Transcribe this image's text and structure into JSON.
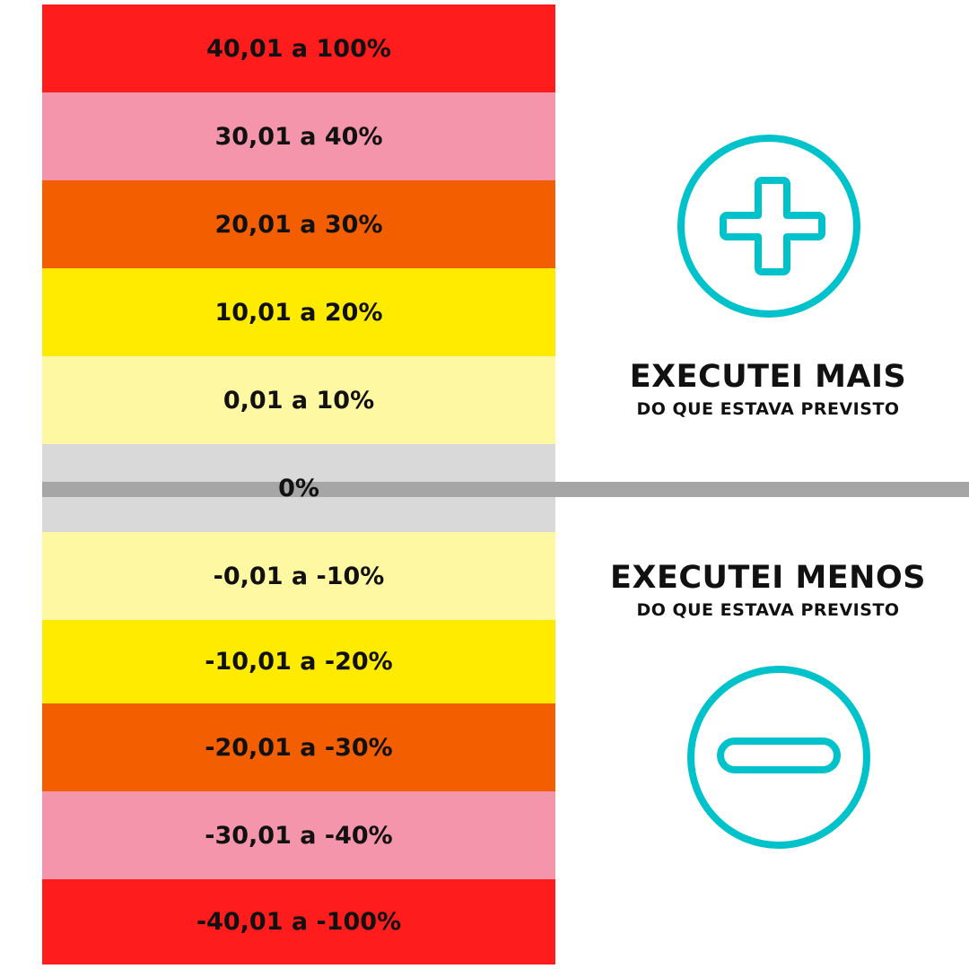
{
  "bands": [
    {
      "label": "40,01 a 100%",
      "color": "#ff1c1c"
    },
    {
      "label": "30,01 a 40%",
      "color": "#f495ab"
    },
    {
      "label": "20,01 a 30%",
      "color": "#f35f00"
    },
    {
      "label": "10,01 a 20%",
      "color": "#ffeb00"
    },
    {
      "label": "0,01 a 10%",
      "color": "#fff8a3"
    },
    {
      "label": "0%",
      "color": "#d9d9d9"
    },
    {
      "label": "-0,01 a -10%",
      "color": "#fff8a3"
    },
    {
      "label": "-10,01 a -20%",
      "color": "#ffeb00"
    },
    {
      "label": "-20,01 a -30%",
      "color": "#f35f00"
    },
    {
      "label": "-30,01 a -40%",
      "color": "#f495ab"
    },
    {
      "label": "-40,01 a -100%",
      "color": "#ff1c1c"
    }
  ],
  "accent_color": "#00c2cb",
  "zero_line_color": "#a6a6a6",
  "upper": {
    "icon": "plus-circle-icon",
    "title": "EXECUTEI MAIS",
    "subtitle": "DO QUE ESTAVA PREVISTO"
  },
  "lower": {
    "icon": "minus-circle-icon",
    "title": "EXECUTEI MENOS",
    "subtitle": "DO QUE ESTAVA PREVISTO"
  }
}
